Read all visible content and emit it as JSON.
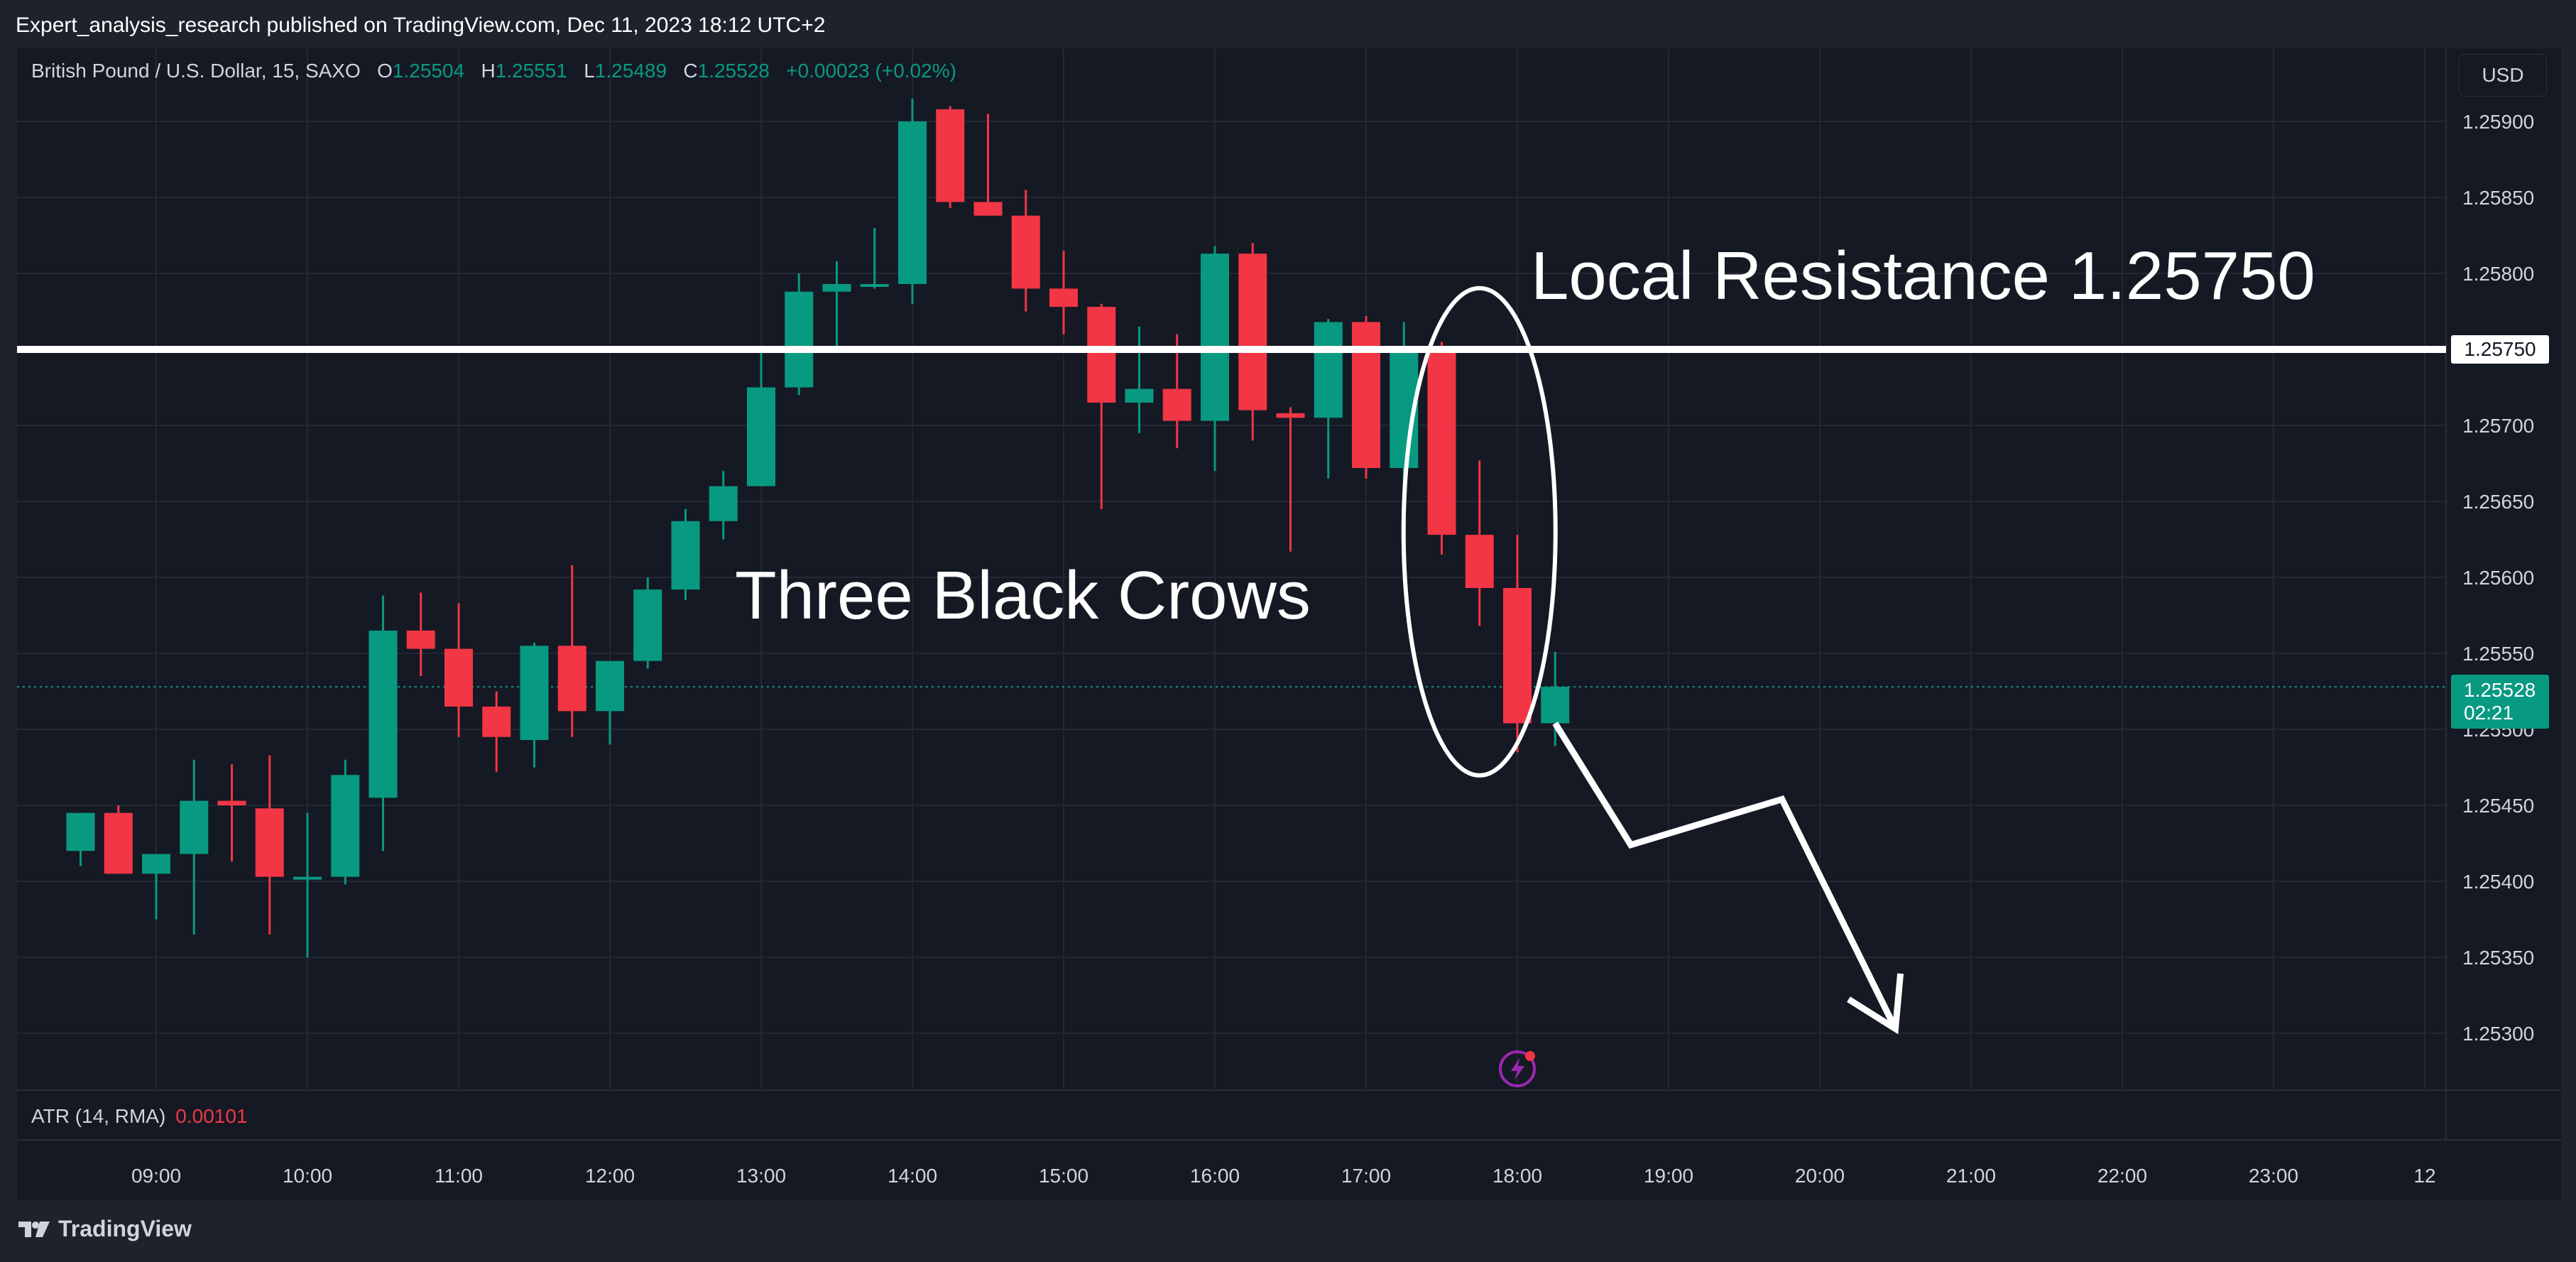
{
  "publisher": "Expert_analysis_research published on TradingView.com, Dec 11, 2023 18:12 UTC+2",
  "legend": {
    "symbol": "British Pound / U.S. Dollar, 15, SAXO",
    "o_label": "O",
    "o": "1.25504",
    "h_label": "H",
    "h": "1.25551",
    "l_label": "L",
    "l": "1.25489",
    "c_label": "C",
    "c": "1.25528",
    "change": "+0.00023 (+0.02%)"
  },
  "currency": "USD",
  "atr": {
    "label": "ATR (14, RMA)",
    "value": "0.00101"
  },
  "annotations": {
    "resistance": "Local Resistance 1.25750",
    "pattern": "Three Black Crows"
  },
  "price_tag": {
    "price": "1.25528",
    "countdown": "02:21"
  },
  "resistance_tag": "1.25750",
  "brand": "TradingView",
  "colors": {
    "up": "#089981",
    "down": "#f23645",
    "background": "#151924",
    "grid": "#232732"
  },
  "chart_data": {
    "type": "candlestick",
    "instrument": "British Pound / U.S. Dollar",
    "timeframe": "15",
    "exchange": "SAXO",
    "ylim": [
      1.2527,
      1.2594
    ],
    "x_range": [
      "08:15",
      "23:45"
    ],
    "y_ticks": [
      "1.25900",
      "1.25850",
      "1.25800",
      "1.25750",
      "1.25700",
      "1.25650",
      "1.25600",
      "1.25550",
      "1.25500",
      "1.25450",
      "1.25400",
      "1.25350",
      "1.25300"
    ],
    "x_ticks": [
      {
        "label": "09:00",
        "t": "09:00"
      },
      {
        "label": "10:00",
        "t": "10:00"
      },
      {
        "label": "11:00",
        "t": "11:00"
      },
      {
        "label": "12:00",
        "t": "12:00"
      },
      {
        "label": "13:00",
        "t": "13:00"
      },
      {
        "label": "14:00",
        "t": "14:00"
      },
      {
        "label": "15:00",
        "t": "15:00"
      },
      {
        "label": "16:00",
        "t": "16:00"
      },
      {
        "label": "17:00",
        "t": "17:00"
      },
      {
        "label": "18:00",
        "t": "18:00"
      },
      {
        "label": "19:00",
        "t": "19:00"
      },
      {
        "label": "20:00",
        "t": "20:00"
      },
      {
        "label": "21:00",
        "t": "21:00"
      },
      {
        "label": "22:00",
        "t": "22:00"
      },
      {
        "label": "23:00",
        "t": "23:00"
      },
      {
        "label": "12",
        "t": "24:00"
      }
    ],
    "candles": [
      {
        "t": "08:30",
        "o": 1.2542,
        "h": 1.25445,
        "l": 1.2541,
        "c": 1.25445
      },
      {
        "t": "08:45",
        "o": 1.25445,
        "h": 1.2545,
        "l": 1.25405,
        "c": 1.25405
      },
      {
        "t": "09:00",
        "o": 1.25405,
        "h": 1.25415,
        "l": 1.25375,
        "c": 1.25418
      },
      {
        "t": "09:15",
        "o": 1.25418,
        "h": 1.2548,
        "l": 1.25365,
        "c": 1.25453
      },
      {
        "t": "09:30",
        "o": 1.25453,
        "h": 1.25477,
        "l": 1.25413,
        "c": 1.2545
      },
      {
        "t": "09:45",
        "o": 1.25448,
        "h": 1.25483,
        "l": 1.25365,
        "c": 1.25403
      },
      {
        "t": "10:00",
        "o": 1.25403,
        "h": 1.25445,
        "l": 1.2535,
        "c": 1.25403
      },
      {
        "t": "10:15",
        "o": 1.25403,
        "h": 1.2548,
        "l": 1.25398,
        "c": 1.2547
      },
      {
        "t": "10:30",
        "o": 1.25455,
        "h": 1.25588,
        "l": 1.2542,
        "c": 1.25565
      },
      {
        "t": "10:45",
        "o": 1.25565,
        "h": 1.2559,
        "l": 1.25535,
        "c": 1.25553
      },
      {
        "t": "11:00",
        "o": 1.25553,
        "h": 1.25583,
        "l": 1.25495,
        "c": 1.25515
      },
      {
        "t": "11:15",
        "o": 1.25515,
        "h": 1.25525,
        "l": 1.25472,
        "c": 1.25495
      },
      {
        "t": "11:30",
        "o": 1.25493,
        "h": 1.25557,
        "l": 1.25475,
        "c": 1.25555
      },
      {
        "t": "11:45",
        "o": 1.25555,
        "h": 1.25608,
        "l": 1.25495,
        "c": 1.25512
      },
      {
        "t": "12:00",
        "o": 1.25512,
        "h": 1.25545,
        "l": 1.2549,
        "c": 1.25545
      },
      {
        "t": "12:15",
        "o": 1.25545,
        "h": 1.256,
        "l": 1.2554,
        "c": 1.25592
      },
      {
        "t": "12:30",
        "o": 1.25592,
        "h": 1.25645,
        "l": 1.25585,
        "c": 1.25637
      },
      {
        "t": "12:45",
        "o": 1.25637,
        "h": 1.2567,
        "l": 1.25625,
        "c": 1.2566
      },
      {
        "t": "13:00",
        "o": 1.2566,
        "h": 1.2575,
        "l": 1.2566,
        "c": 1.25725
      },
      {
        "t": "13:15",
        "o": 1.25725,
        "h": 1.258,
        "l": 1.2572,
        "c": 1.25788
      },
      {
        "t": "13:30",
        "o": 1.25788,
        "h": 1.25808,
        "l": 1.2575,
        "c": 1.25793
      },
      {
        "t": "13:45",
        "o": 1.25793,
        "h": 1.2583,
        "l": 1.2579,
        "c": 1.25793
      },
      {
        "t": "14:00",
        "o": 1.25793,
        "h": 1.25915,
        "l": 1.2578,
        "c": 1.259
      },
      {
        "t": "14:15",
        "o": 1.25908,
        "h": 1.2591,
        "l": 1.25843,
        "c": 1.25847
      },
      {
        "t": "14:30",
        "o": 1.25847,
        "h": 1.25905,
        "l": 1.25838,
        "c": 1.25838
      },
      {
        "t": "14:45",
        "o": 1.25838,
        "h": 1.25855,
        "l": 1.25775,
        "c": 1.2579
      },
      {
        "t": "15:00",
        "o": 1.2579,
        "h": 1.25815,
        "l": 1.2576,
        "c": 1.25778
      },
      {
        "t": "15:15",
        "o": 1.25778,
        "h": 1.2578,
        "l": 1.25645,
        "c": 1.25715
      },
      {
        "t": "15:30",
        "o": 1.25715,
        "h": 1.25765,
        "l": 1.25695,
        "c": 1.25724
      },
      {
        "t": "15:45",
        "o": 1.25724,
        "h": 1.2576,
        "l": 1.25685,
        "c": 1.25703
      },
      {
        "t": "16:00",
        "o": 1.25703,
        "h": 1.25818,
        "l": 1.2567,
        "c": 1.25813
      },
      {
        "t": "16:15",
        "o": 1.25813,
        "h": 1.2582,
        "l": 1.2569,
        "c": 1.2571
      },
      {
        "t": "16:30",
        "o": 1.25708,
        "h": 1.25712,
        "l": 1.25617,
        "c": 1.25705
      },
      {
        "t": "16:45",
        "o": 1.25705,
        "h": 1.2577,
        "l": 1.25665,
        "c": 1.25768
      },
      {
        "t": "17:00",
        "o": 1.25768,
        "h": 1.25772,
        "l": 1.25665,
        "c": 1.25672
      },
      {
        "t": "17:15",
        "o": 1.25672,
        "h": 1.25768,
        "l": 1.2566,
        "c": 1.2575
      },
      {
        "t": "17:30",
        "o": 1.2575,
        "h": 1.25755,
        "l": 1.25615,
        "c": 1.25628
      },
      {
        "t": "17:45",
        "o": 1.25628,
        "h": 1.25677,
        "l": 1.25568,
        "c": 1.25593
      },
      {
        "t": "18:00",
        "o": 1.25593,
        "h": 1.25628,
        "l": 1.25485,
        "c": 1.25504
      },
      {
        "t": "18:15",
        "o": 1.25504,
        "h": 1.25551,
        "l": 1.25489,
        "c": 1.25528
      }
    ],
    "lines": [
      {
        "type": "horizontal",
        "price": 1.2575,
        "label": "1.25750"
      }
    ],
    "drawings": [
      {
        "type": "ellipse",
        "t_center": "17:45",
        "price_center": 1.2563
      },
      {
        "type": "arrow",
        "points": [
          [
            "18:15",
            1.25504
          ],
          [
            "18:45",
            1.25424
          ],
          [
            "19:45",
            1.25454
          ],
          [
            "20:30",
            1.25303
          ]
        ]
      }
    ],
    "current_price": 1.25528
  }
}
